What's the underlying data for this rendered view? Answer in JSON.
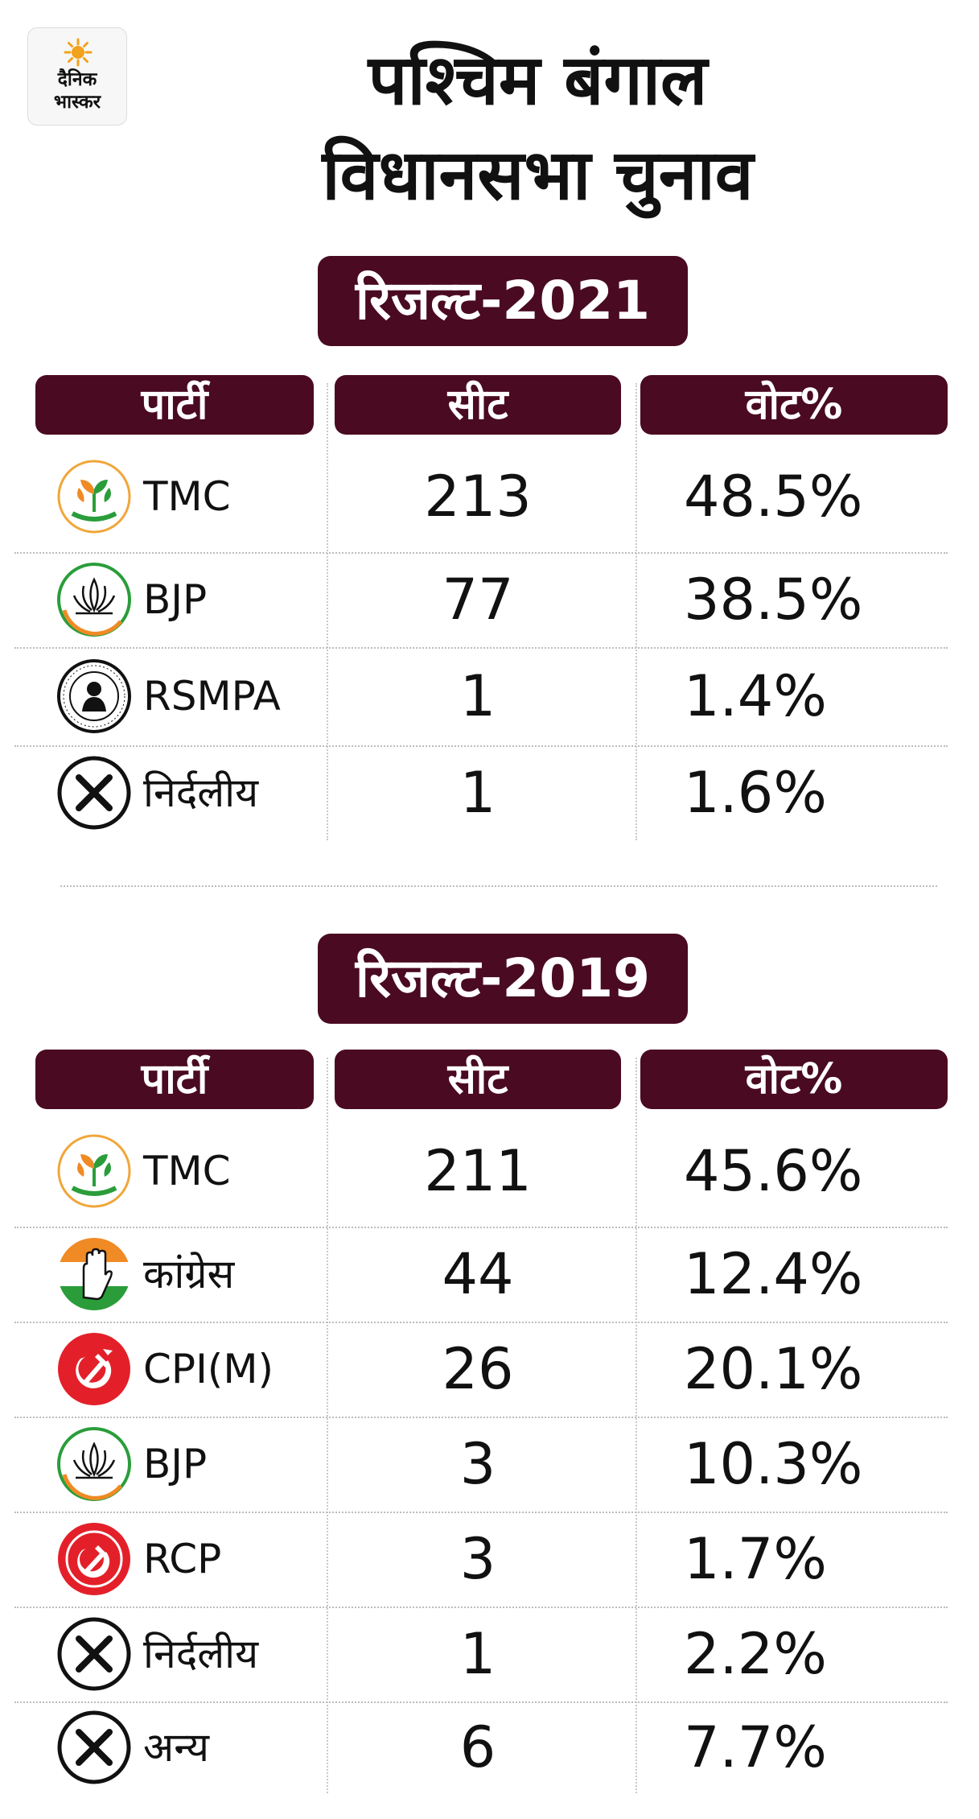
{
  "logo": {
    "line1": "दैनिक",
    "line2": "भास्कर",
    "icon": "sun-logo-icon"
  },
  "title": {
    "line1": "पश्चिम बंगाल",
    "line2": "विधानसभा चुनाव"
  },
  "colors": {
    "header_bg": "#4a0a22",
    "header_text": "#ffffff"
  },
  "sections": [
    {
      "banner": "रिजल्ट-2021",
      "headers": {
        "party": "पार्टी",
        "seat": "सीट",
        "vote": "वोट%"
      },
      "rows": [
        {
          "icon": "tmc-flower-icon",
          "party": "TMC",
          "seats": "213",
          "vote": "48.5%"
        },
        {
          "icon": "bjp-lotus-icon",
          "party": "BJP",
          "seats": "77",
          "vote": "38.5%"
        },
        {
          "icon": "rsmpa-seal-icon",
          "party": "RSMPA",
          "seats": "1",
          "vote": "1.4%"
        },
        {
          "icon": "independent-cross-icon",
          "party": "निर्दलीय",
          "seats": "1",
          "vote": "1.6%"
        }
      ]
    },
    {
      "banner": "रिजल्ट-2019",
      "headers": {
        "party": "पार्टी",
        "seat": "सीट",
        "vote": "वोट%"
      },
      "rows": [
        {
          "icon": "tmc-flower-icon",
          "party": "TMC",
          "seats": "211",
          "vote": "45.6%"
        },
        {
          "icon": "congress-hand-icon",
          "party": "कांग्रेस",
          "seats": "44",
          "vote": "12.4%"
        },
        {
          "icon": "cpim-hammer-sickle-icon",
          "party": "CPI(M)",
          "seats": "26",
          "vote": "20.1%"
        },
        {
          "icon": "bjp-lotus-icon",
          "party": "BJP",
          "seats": "3",
          "vote": "10.3%"
        },
        {
          "icon": "rcp-hammer-sickle-icon",
          "party": "RCP",
          "seats": "3",
          "vote": "1.7%"
        },
        {
          "icon": "independent-cross-icon",
          "party": "निर्दलीय",
          "seats": "1",
          "vote": "2.2%"
        },
        {
          "icon": "other-cross-icon",
          "party": "अन्य",
          "seats": "6",
          "vote": "7.7%"
        }
      ]
    }
  ]
}
